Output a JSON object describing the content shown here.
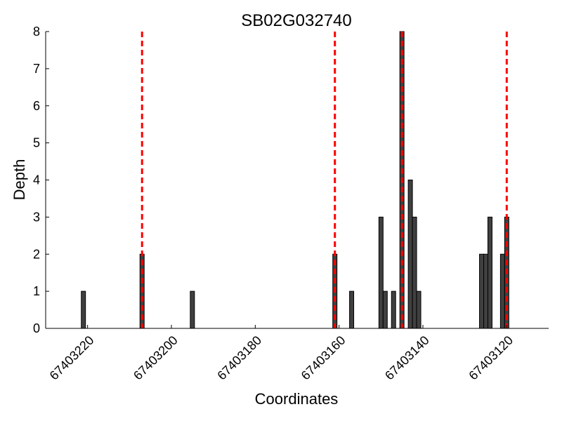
{
  "chart_data": {
    "type": "bar",
    "title": "SB02G032740",
    "xlabel": "Coordinates",
    "ylabel": "Depth",
    "x_axis_reversed": true,
    "xlim": [
      67403230,
      67403110
    ],
    "ylim": [
      0,
      8
    ],
    "x_ticks": [
      67403220,
      67403200,
      67403180,
      67403160,
      67403140,
      67403120
    ],
    "x_tick_labels": [
      "67403220",
      "67403200",
      "67403180",
      "67403160",
      "67403140",
      "67403120"
    ],
    "y_ticks": [
      0,
      1,
      2,
      3,
      4,
      5,
      6,
      7,
      8
    ],
    "y_tick_labels": [
      "0",
      "1",
      "2",
      "3",
      "4",
      "5",
      "6",
      "7",
      "8"
    ],
    "bar_color": "#404040",
    "marker_line_color": "#ff0000",
    "grid": false,
    "legend": "none",
    "bars": [
      {
        "x": 67403221,
        "depth": 1
      },
      {
        "x": 67403207,
        "depth": 2
      },
      {
        "x": 67403195,
        "depth": 1
      },
      {
        "x": 67403161,
        "depth": 2
      },
      {
        "x": 67403157,
        "depth": 1
      },
      {
        "x": 67403150,
        "depth": 3
      },
      {
        "x": 67403149,
        "depth": 1
      },
      {
        "x": 67403147,
        "depth": 1
      },
      {
        "x": 67403145,
        "depth": 8
      },
      {
        "x": 67403143,
        "depth": 4
      },
      {
        "x": 67403142,
        "depth": 3
      },
      {
        "x": 67403141,
        "depth": 1
      },
      {
        "x": 67403126,
        "depth": 2
      },
      {
        "x": 67403125,
        "depth": 2
      },
      {
        "x": 67403124,
        "depth": 3
      },
      {
        "x": 67403121,
        "depth": 2
      },
      {
        "x": 67403120,
        "depth": 3
      }
    ],
    "marker_lines": [
      67403207,
      67403161,
      67403145,
      67403120
    ]
  }
}
